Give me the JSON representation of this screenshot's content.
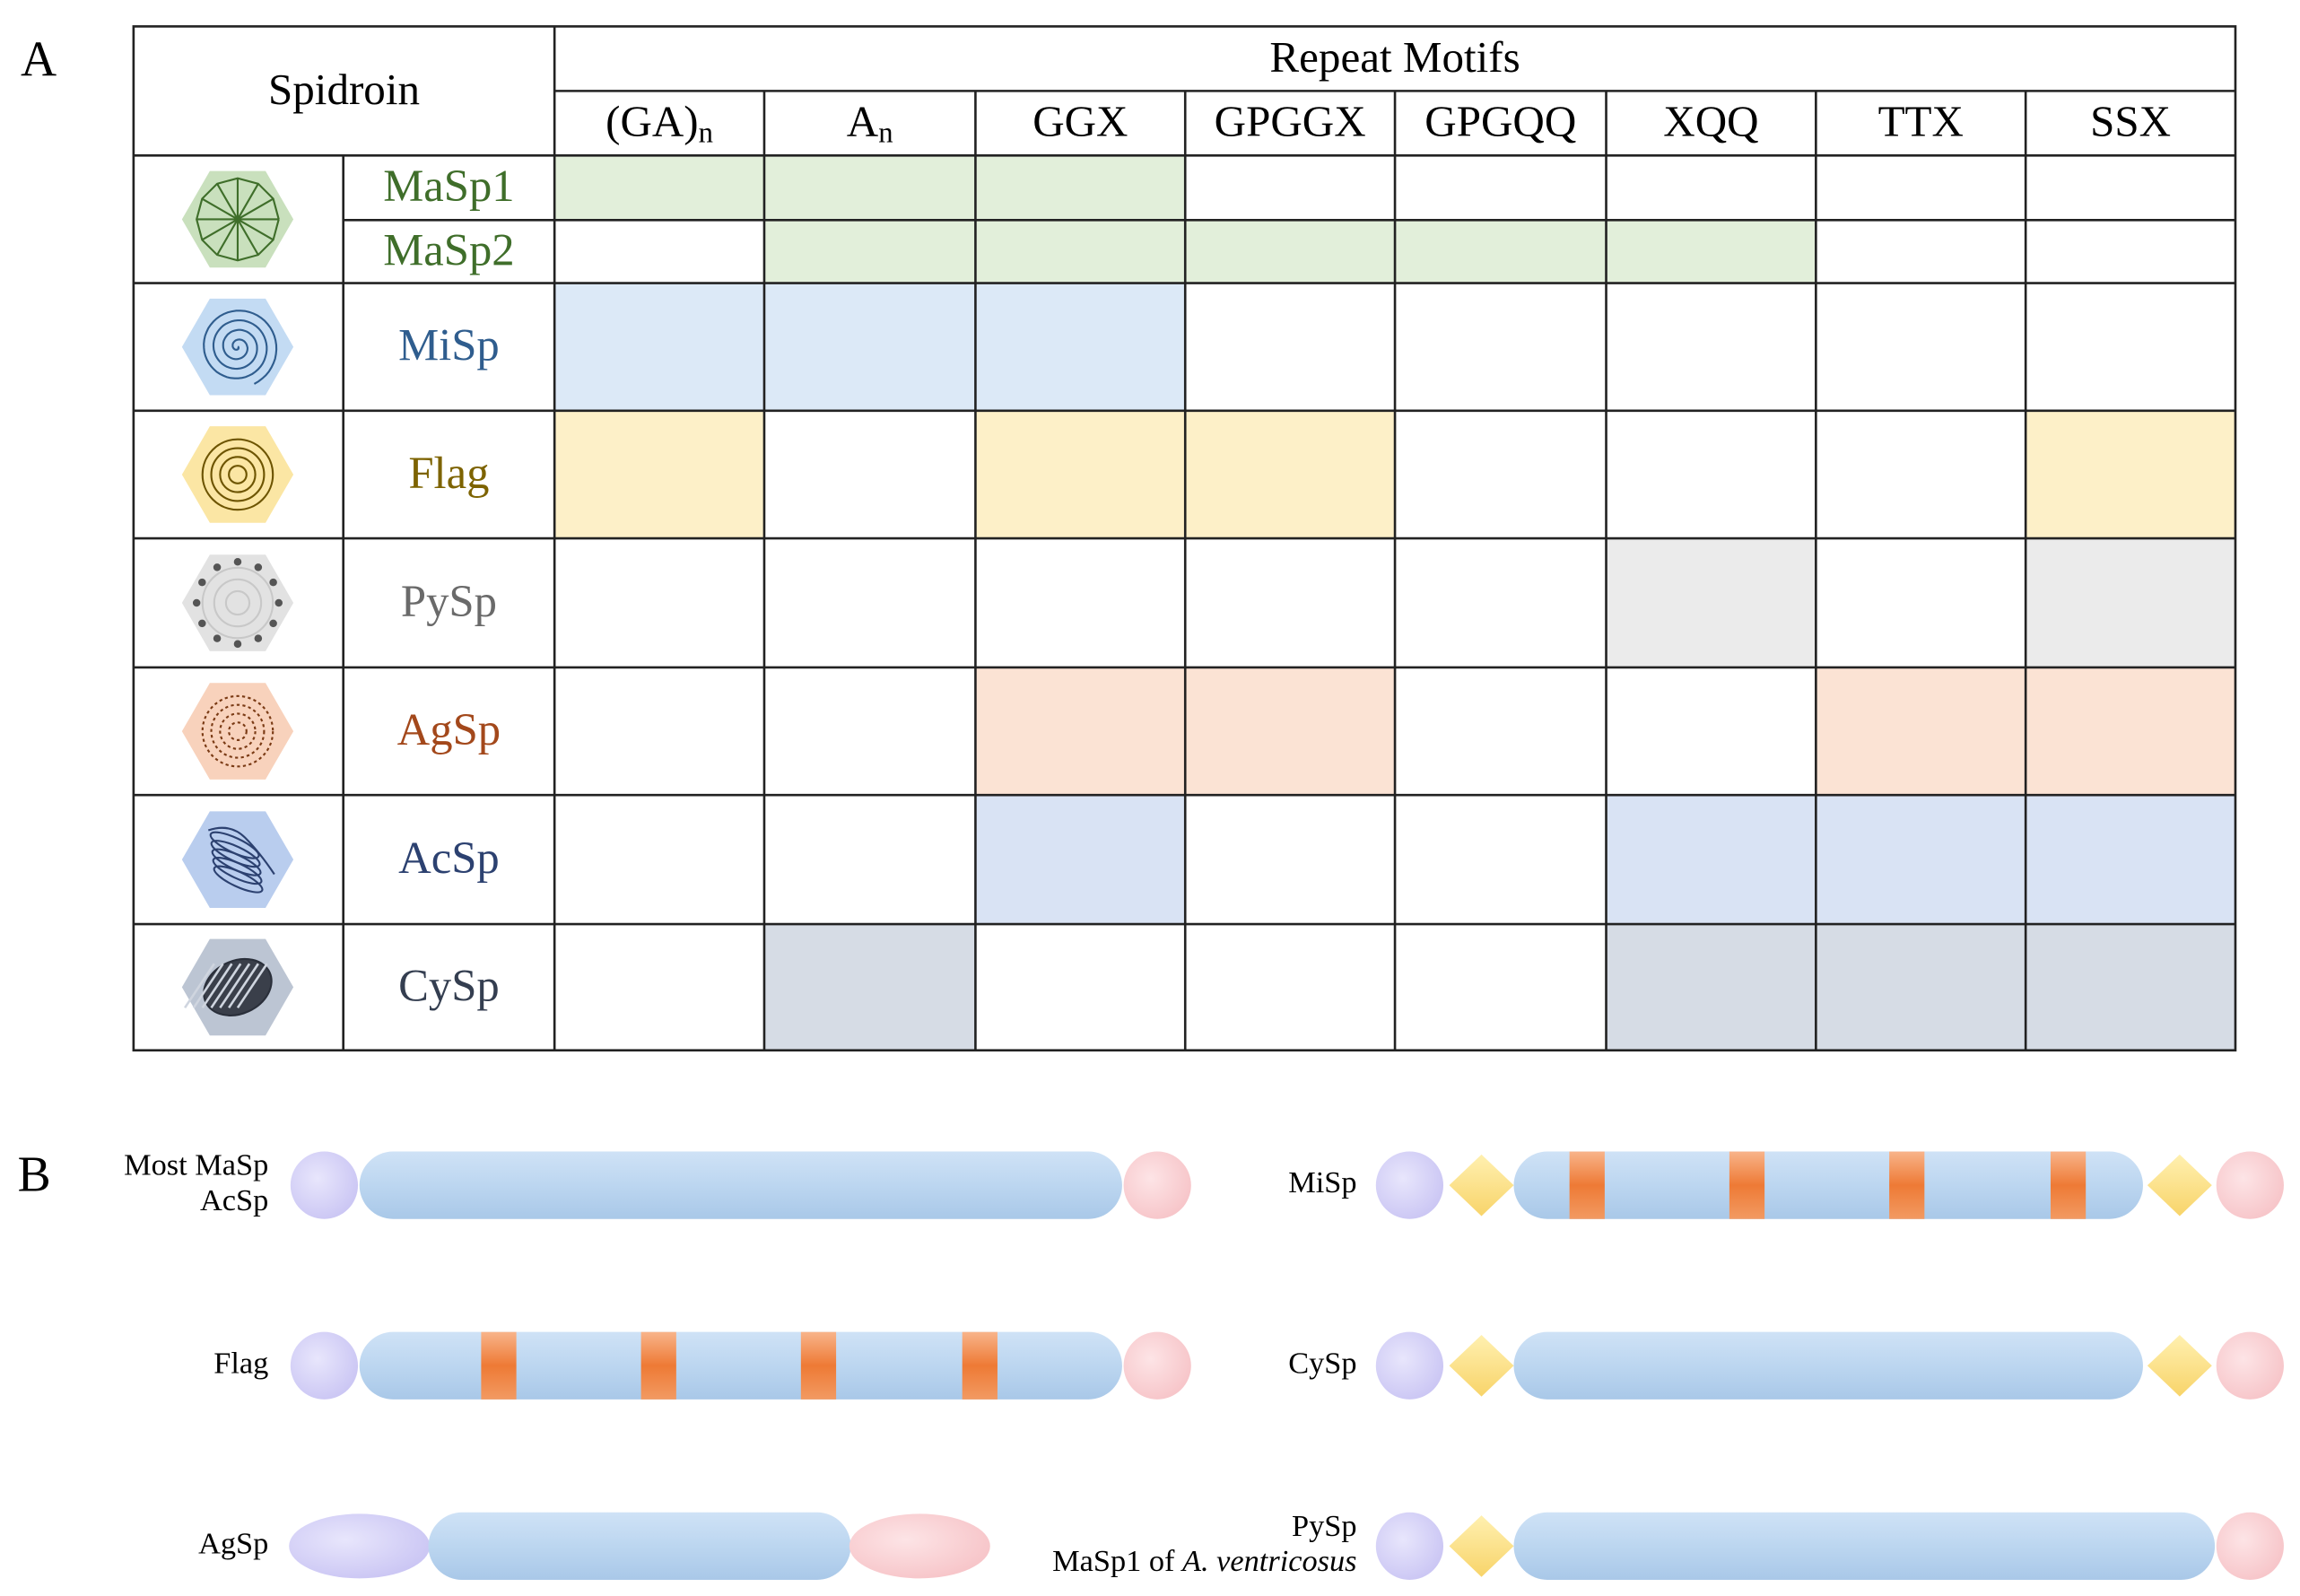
{
  "panels": [
    "A",
    "B"
  ],
  "table": {
    "header_spidroin": "Spidroin",
    "header_motifs": "Repeat Motifs",
    "motifs": [
      {
        "text": "(GA)",
        "sub": "n"
      },
      {
        "text": "A",
        "sub": "n"
      },
      {
        "text": "GGX"
      },
      {
        "text": "GPGGX"
      },
      {
        "text": "GPGQQ"
      },
      {
        "text": "XQQ"
      },
      {
        "text": "TTX"
      },
      {
        "text": "SSX"
      }
    ],
    "rows": [
      {
        "name": "MaSp1",
        "text_color": "#3f6e2a",
        "fill": "#e2efda",
        "cells": [
          true,
          true,
          true,
          false,
          false,
          false,
          false,
          false
        ]
      },
      {
        "name": "MaSp2",
        "text_color": "#3f6e2a",
        "fill": "#e2efda",
        "cells": [
          false,
          true,
          true,
          true,
          true,
          true,
          false,
          false
        ]
      },
      {
        "name": "MiSp",
        "text_color": "#2f5d8e",
        "fill": "#dce9f7",
        "cells": [
          true,
          true,
          true,
          false,
          false,
          false,
          false,
          false
        ]
      },
      {
        "name": "Flag",
        "text_color": "#7d6300",
        "fill": "#fdf0c8",
        "cells": [
          true,
          false,
          true,
          true,
          false,
          false,
          false,
          true
        ]
      },
      {
        "name": "PySp",
        "text_color": "#6a6a6a",
        "fill": "#ebebeb",
        "cells": [
          false,
          false,
          false,
          false,
          false,
          true,
          false,
          true
        ]
      },
      {
        "name": "AgSp",
        "text_color": "#a3481b",
        "fill": "#fbe3d4",
        "cells": [
          false,
          false,
          true,
          true,
          false,
          false,
          true,
          true
        ]
      },
      {
        "name": "AcSp",
        "text_color": "#2c4170",
        "fill": "#d9e3f4",
        "cells": [
          false,
          false,
          true,
          false,
          false,
          true,
          true,
          true
        ]
      },
      {
        "name": "CySp",
        "text_color": "#343e50",
        "fill": "#d6dce5",
        "cells": [
          false,
          true,
          false,
          false,
          false,
          true,
          true,
          true
        ]
      }
    ]
  },
  "constructs": [
    {
      "label": [
        [
          "Most MaSp"
        ],
        [
          "AcSp"
        ]
      ]
    },
    {
      "label": [
        [
          "MiSp"
        ]
      ]
    },
    {
      "label": [
        [
          "Flag"
        ]
      ]
    },
    {
      "label": [
        [
          "CySp"
        ]
      ]
    },
    {
      "label": [
        [
          "AgSp"
        ]
      ]
    },
    {
      "label": [
        [
          "PySp"
        ],
        [
          "MaSp1 of ",
          "A. ventricosus"
        ]
      ]
    }
  ]
}
